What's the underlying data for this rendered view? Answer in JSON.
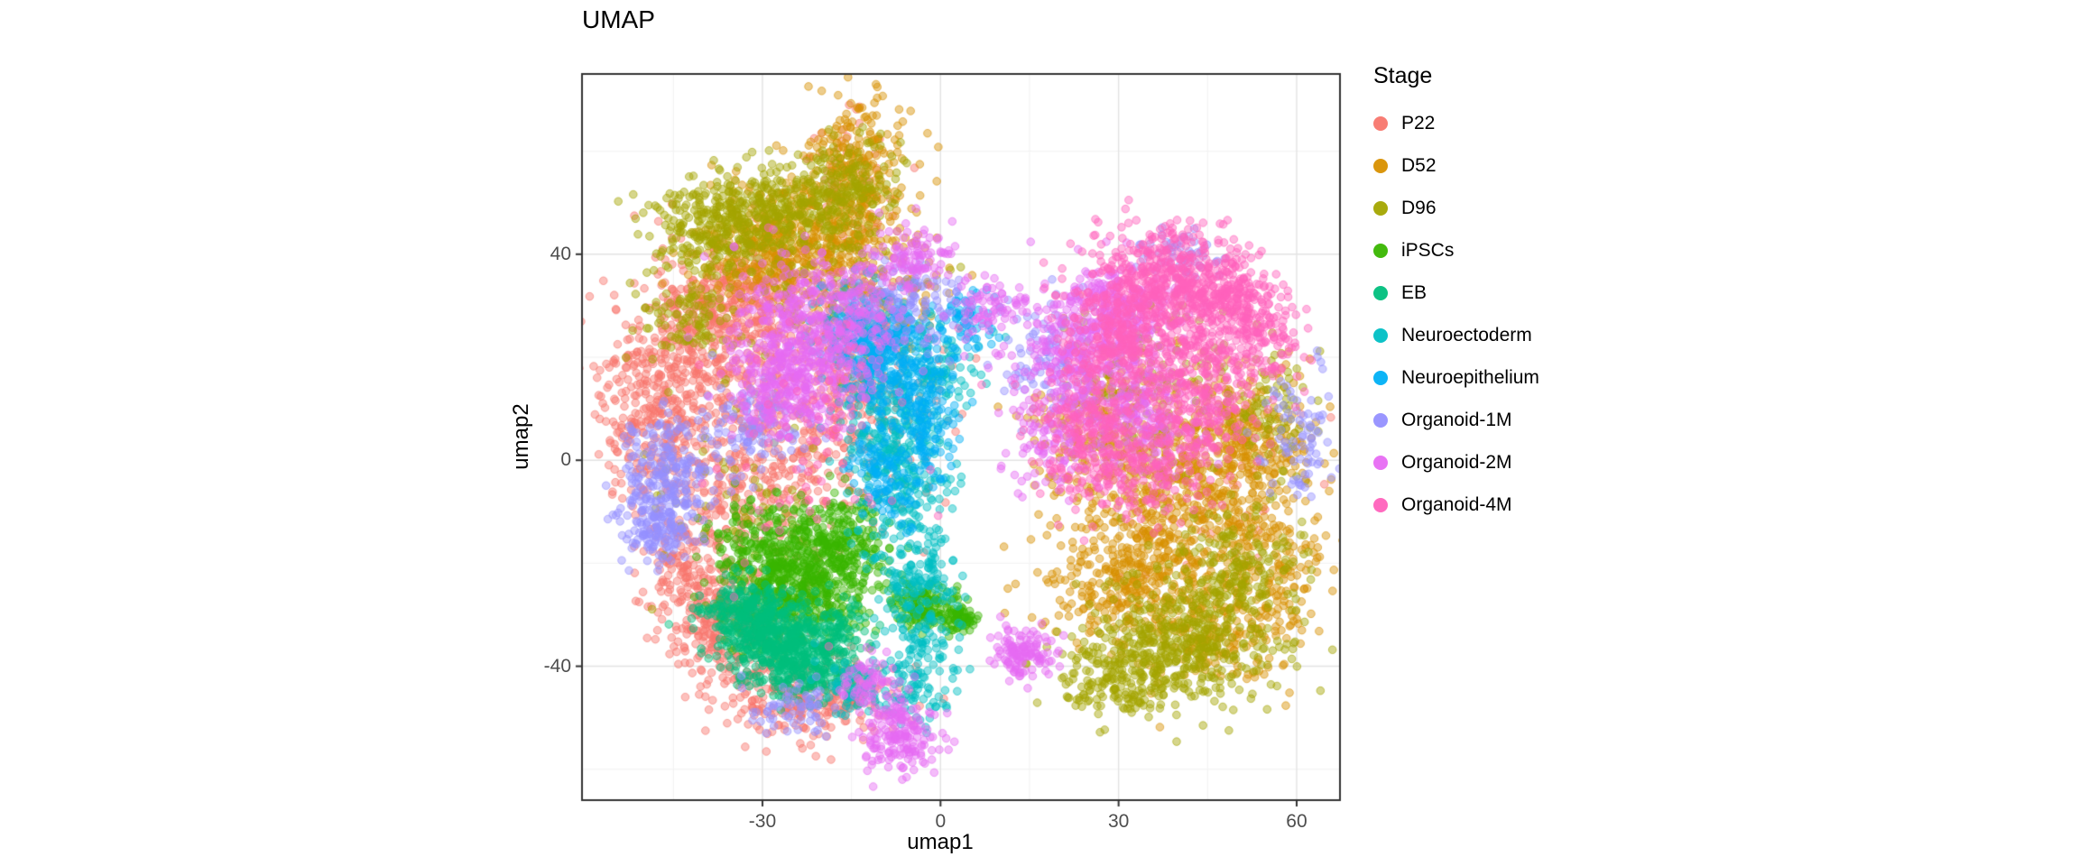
{
  "style": {
    "background": "#ffffff",
    "panel_background": "#ffffff",
    "panel_border": "#333333",
    "grid_major": "#e3e3e3",
    "grid_minor": "#f2f2f2",
    "tick_mark_color": "#333333",
    "tick_label_color": "#4d4d4d",
    "text_color": "#000000"
  },
  "chart_data": {
    "type": "scatter",
    "title": "UMAP",
    "xlabel": "umap1",
    "ylabel": "umap2",
    "xlim": [
      -60.4,
      67.3
    ],
    "ylim": [
      -66,
      75
    ],
    "x_ticks": [
      -30,
      0,
      30,
      60
    ],
    "y_ticks": [
      -40,
      0,
      40
    ],
    "x_minor_ticks": [
      -45,
      -15,
      15,
      45
    ],
    "y_minor_ticks": [
      -60,
      -20,
      20,
      60
    ],
    "grid": true,
    "legend_title": "Stage",
    "legend_position": "right",
    "point_radius_px": 4.3,
    "point_alpha": 0.45,
    "cluster_format": "each cluster is [center_x, center_y, sd_x, sd_y, n_points] in data units; points are a 2D gaussian sample approximating the dense UMAP embedding",
    "series": [
      {
        "name": "P22",
        "color": "#F8766D",
        "clusters": [
          [
            -38,
            22,
            9,
            10,
            450
          ],
          [
            -48,
            8,
            5,
            9,
            250
          ],
          [
            -30,
            -2,
            8,
            9,
            350
          ],
          [
            -36,
            -32,
            6,
            6,
            300
          ],
          [
            -22,
            -47,
            8,
            4,
            250
          ],
          [
            -34,
            31,
            7,
            5,
            220
          ],
          [
            -14,
            12,
            7,
            9,
            250
          ],
          [
            -42,
            -20,
            5,
            6,
            150
          ],
          [
            45,
            0,
            10,
            13,
            80
          ],
          [
            -15,
            55,
            4,
            6,
            60
          ]
        ]
      },
      {
        "name": "D52",
        "color": "#D89000",
        "clusters": [
          [
            -20,
            45,
            8,
            6,
            420
          ],
          [
            -14,
            60,
            4,
            6,
            160
          ],
          [
            -29,
            38,
            7,
            4,
            200
          ],
          [
            40,
            -8,
            9,
            11,
            600
          ],
          [
            51,
            4,
            7,
            7,
            260
          ],
          [
            31,
            -24,
            7,
            6,
            260
          ],
          [
            25,
            8,
            5,
            7,
            160
          ],
          [
            56,
            -22,
            5,
            7,
            160
          ],
          [
            47,
            -35,
            6,
            5,
            150
          ],
          [
            -10,
            30,
            6,
            6,
            120
          ]
        ]
      },
      {
        "name": "D96",
        "color": "#A3A500",
        "clusters": [
          [
            -38,
            45,
            6,
            5,
            300
          ],
          [
            -26,
            49,
            6,
            4,
            250
          ],
          [
            -15,
            54,
            4,
            5,
            160
          ],
          [
            40,
            -36,
            8,
            6,
            420
          ],
          [
            50,
            -22,
            6,
            6,
            220
          ],
          [
            31,
            -42,
            5,
            4,
            160
          ],
          [
            56,
            8,
            4,
            8,
            90
          ],
          [
            -42,
            27,
            4,
            4,
            90
          ],
          [
            35,
            18,
            8,
            8,
            90
          ],
          [
            -20,
            30,
            8,
            8,
            80
          ],
          [
            -35,
            -10,
            8,
            10,
            60
          ]
        ]
      },
      {
        "name": "iPSCs",
        "color": "#39B600",
        "clusters": [
          [
            -24,
            -24,
            6,
            6,
            600
          ],
          [
            -16,
            -16,
            4,
            5,
            200
          ],
          [
            -3,
            -28,
            2.5,
            2.5,
            140
          ],
          [
            3,
            -31,
            1.5,
            1.5,
            70
          ],
          [
            -30,
            -16,
            4,
            4,
            120
          ]
        ]
      },
      {
        "name": "EB",
        "color": "#00BF7D",
        "clusters": [
          [
            -28,
            -35,
            5,
            4,
            450
          ],
          [
            -33,
            -29,
            4,
            3,
            180
          ],
          [
            -22,
            -41,
            4,
            3,
            180
          ],
          [
            -17,
            -34,
            3,
            3,
            90
          ]
        ]
      },
      {
        "name": "Neuroectoderm",
        "color": "#00BFC4",
        "clusters": [
          [
            -6,
            -5,
            4,
            10,
            260
          ],
          [
            -3,
            -27,
            3,
            6,
            160
          ],
          [
            -9,
            10,
            4,
            7,
            160
          ],
          [
            -4,
            -43,
            3,
            4,
            90
          ],
          [
            -14,
            -44,
            3,
            3,
            70
          ],
          [
            0,
            18,
            3,
            4,
            80
          ]
        ]
      },
      {
        "name": "Neuroepithelium",
        "color": "#00B0F6",
        "clusters": [
          [
            -9,
            20,
            4,
            5,
            260
          ],
          [
            -13,
            26,
            4,
            4,
            160
          ],
          [
            -2,
            8,
            3,
            6,
            120
          ],
          [
            -9,
            -3,
            3,
            5,
            110
          ],
          [
            4,
            27,
            3,
            3,
            70
          ]
        ]
      },
      {
        "name": "Organoid-1M",
        "color": "#9590FF",
        "clusters": [
          [
            -46,
            -3,
            4,
            6,
            220
          ],
          [
            -48,
            -13,
            3,
            4,
            130
          ],
          [
            -6,
            31,
            5,
            4,
            130
          ],
          [
            19,
            22,
            4,
            5,
            90
          ],
          [
            -32,
            6,
            5,
            5,
            120
          ],
          [
            60,
            2,
            3,
            7,
            80
          ],
          [
            40,
            40,
            4,
            3,
            50
          ],
          [
            -25,
            -48,
            4,
            3,
            60
          ]
        ]
      },
      {
        "name": "Organoid-2M",
        "color": "#E76BF3",
        "clusters": [
          [
            -20,
            26,
            7,
            7,
            500
          ],
          [
            -26,
            14,
            5,
            5,
            250
          ],
          [
            25,
            20,
            6,
            7,
            350
          ],
          [
            30,
            30,
            5,
            4,
            200
          ],
          [
            -7,
            -54,
            3,
            4,
            180
          ],
          [
            14,
            -38,
            2.5,
            2.5,
            130
          ],
          [
            35,
            8,
            5,
            5,
            160
          ],
          [
            -4,
            40,
            3,
            3,
            90
          ],
          [
            8,
            30,
            3,
            3,
            70
          ],
          [
            -12,
            -44,
            3,
            3,
            70
          ],
          [
            20,
            5,
            4,
            6,
            120
          ]
        ]
      },
      {
        "name": "Organoid-4M",
        "color": "#FF62BC",
        "clusters": [
          [
            38,
            35,
            7,
            5,
            500
          ],
          [
            30,
            24,
            5,
            5,
            250
          ],
          [
            45,
            20,
            6,
            6,
            250
          ],
          [
            25,
            6,
            5,
            7,
            220
          ],
          [
            49,
            31,
            4,
            3,
            160
          ],
          [
            55,
            24,
            3,
            4,
            90
          ],
          [
            34,
            -3,
            5,
            5,
            160
          ],
          [
            43,
            8,
            5,
            5,
            150
          ],
          [
            -22,
            5,
            10,
            14,
            70
          ]
        ]
      }
    ]
  }
}
